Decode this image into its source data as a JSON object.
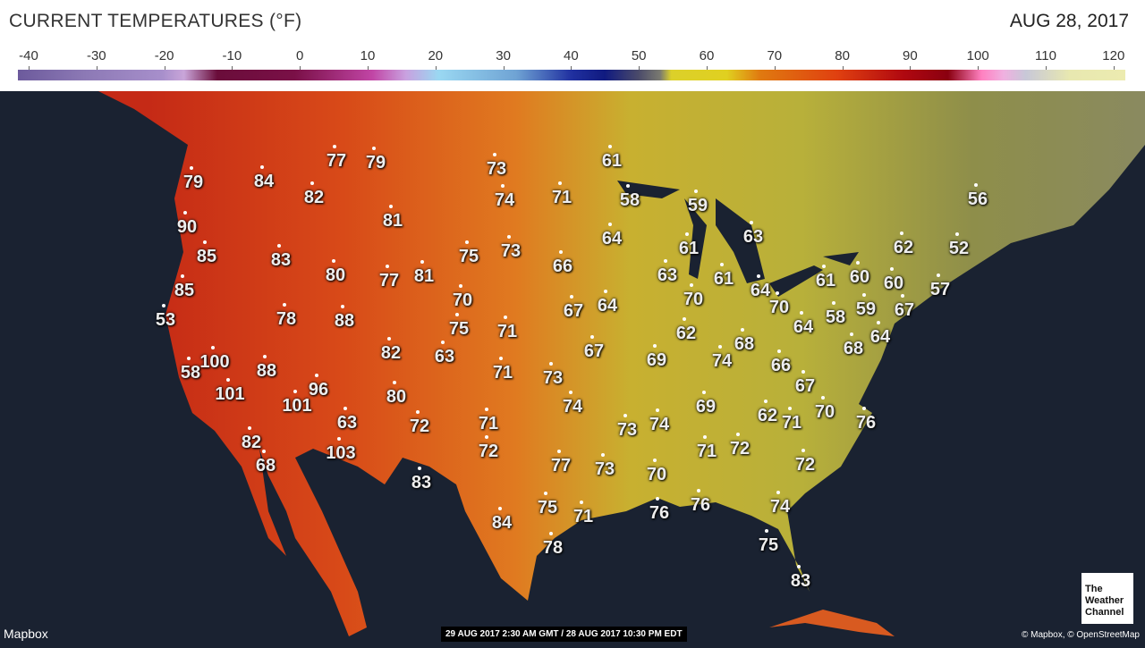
{
  "header": {
    "title": "CURRENT TEMPERATURES (°F)",
    "date": "AUG 28, 2017"
  },
  "legend": {
    "ticks": [
      "-40",
      "-30",
      "-20",
      "-10",
      "0",
      "10",
      "20",
      "30",
      "40",
      "50",
      "60",
      "70",
      "80",
      "90",
      "100",
      "110",
      "120"
    ],
    "colors": {
      "cold": "#6c5a9c",
      "freezing": "#9ad8f2",
      "mild": "#e0d020",
      "hot": "#e04010",
      "extreme": "#ff80c0"
    }
  },
  "map": {
    "ocean_color": "#1a2231",
    "land_west": "#d33a18",
    "land_east": "#b8b03a",
    "temperatures": [
      "79",
      "84",
      "77",
      "79",
      "82",
      "90",
      "85",
      "83",
      "81",
      "80",
      "77",
      "81",
      "85",
      "53",
      "78",
      "88",
      "75",
      "70",
      "73",
      "74",
      "71",
      "73",
      "66",
      "67",
      "64",
      "75",
      "71",
      "82",
      "63",
      "67",
      "71",
      "73",
      "74",
      "100",
      "58",
      "88",
      "96",
      "101",
      "101",
      "80",
      "72",
      "63",
      "71",
      "82",
      "68",
      "103",
      "72",
      "83",
      "77",
      "73",
      "73",
      "74",
      "70",
      "84",
      "75",
      "71",
      "78",
      "76",
      "76",
      "71",
      "72",
      "69",
      "62",
      "71",
      "70",
      "76",
      "72",
      "74",
      "75",
      "83",
      "61",
      "58",
      "59",
      "64",
      "61",
      "63",
      "63",
      "61",
      "70",
      "62",
      "68",
      "74",
      "69",
      "66",
      "67",
      "64",
      "70",
      "64",
      "58",
      "68",
      "64",
      "61",
      "60",
      "60",
      "59",
      "67",
      "62",
      "52",
      "57",
      "56"
    ]
  },
  "footer": {
    "logo": "Mapbox",
    "timestamp": "29 AUG 2017 2:30 AM GMT / 28 AUG 2017 10:30 PM EDT",
    "attribution": "© Mapbox, © OpenStreetMap",
    "brand": "The Weather Channel"
  }
}
